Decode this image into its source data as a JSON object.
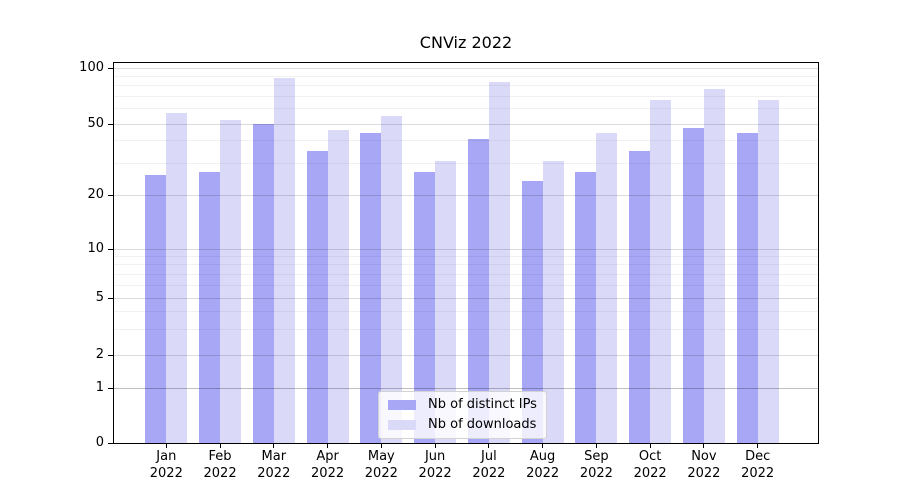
{
  "chart_data": {
    "type": "bar",
    "title": "CNViz 2022",
    "categories": [
      "Jan",
      "Feb",
      "Mar",
      "Apr",
      "May",
      "Jun",
      "Jul",
      "Aug",
      "Sep",
      "Oct",
      "Nov",
      "Dec"
    ],
    "category_year": "2022",
    "series": [
      {
        "name": "Nb of distinct IPs",
        "color": "#a7a7f6",
        "values": [
          26,
          27,
          50,
          35,
          44,
          27,
          41,
          24,
          27,
          35,
          47,
          44
        ]
      },
      {
        "name": "Nb of downloads",
        "color": "#dadaf8",
        "values": [
          57,
          52,
          88,
          46,
          55,
          31,
          84,
          31,
          44,
          67,
          77,
          67
        ]
      }
    ],
    "xlabel": "",
    "ylabel": "",
    "yscale": "symlog",
    "ylim": [
      0,
      100
    ],
    "yticks": [
      0,
      1,
      2,
      5,
      10,
      20,
      50,
      100
    ],
    "yticks_minor": [
      3,
      4,
      6,
      7,
      8,
      9,
      30,
      40,
      60,
      70,
      80,
      90
    ],
    "grid": true,
    "legend_position": "lower center"
  }
}
